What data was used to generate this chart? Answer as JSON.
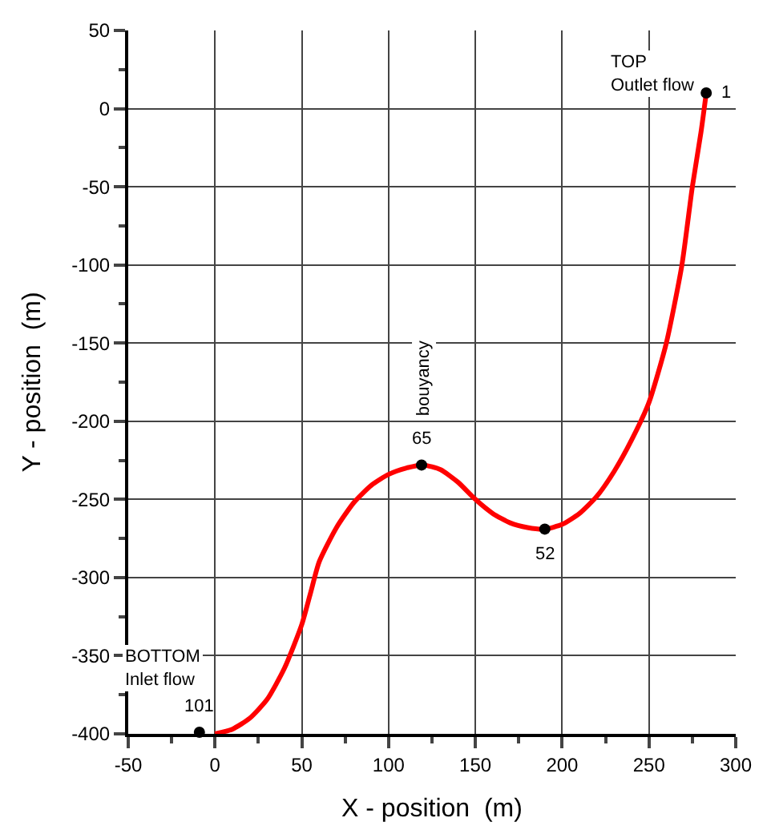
{
  "chart_data": {
    "type": "line",
    "xlabel": "X - position  (m)",
    "ylabel": "Y - position  (m)",
    "xlim": [
      -50,
      300
    ],
    "xticks": [
      -50,
      0,
      50,
      100,
      150,
      200,
      250,
      300
    ],
    "ylim": [
      -400,
      50
    ],
    "yticks": [
      -400,
      -350,
      -300,
      -250,
      -200,
      -150,
      -100,
      -50,
      0,
      50
    ],
    "grid": true,
    "series": [
      {
        "color": "#ff0000",
        "line_style": "solid",
        "marker": "none",
        "x": [
          0,
          10,
          20,
          30,
          40,
          50,
          55,
          60,
          70,
          80,
          90,
          100,
          110,
          120,
          130,
          140,
          150,
          160,
          170,
          180,
          190,
          200,
          210,
          220,
          230,
          240,
          250,
          260,
          269,
          275,
          280,
          283
        ],
        "values": [
          -400,
          -397,
          -390,
          -378,
          -358,
          -330,
          -310,
          -290,
          -268,
          -252,
          -241,
          -234,
          -230,
          -228,
          -231,
          -239,
          -250,
          -259,
          -265,
          -268,
          -269,
          -266,
          -259,
          -248,
          -232,
          -212,
          -188,
          -150,
          -100,
          -50,
          -15,
          10
        ]
      },
      {
        "type": "scatter",
        "color": "#000000",
        "marker": "circle",
        "x": [
          283,
          119,
          190,
          -9
        ],
        "values": [
          10,
          -228,
          -269,
          -399
        ]
      }
    ],
    "annotations": [
      {
        "text": "1",
        "x": 283,
        "y": 10
      },
      {
        "text": "65",
        "x": 119,
        "y": -228
      },
      {
        "text": "52",
        "x": 190,
        "y": -269
      },
      {
        "text": "101",
        "x": -9,
        "y": -399
      },
      "TOP\nOutlet flow",
      "bouyancy",
      "BOTTOM\nInlet flow"
    ]
  }
}
